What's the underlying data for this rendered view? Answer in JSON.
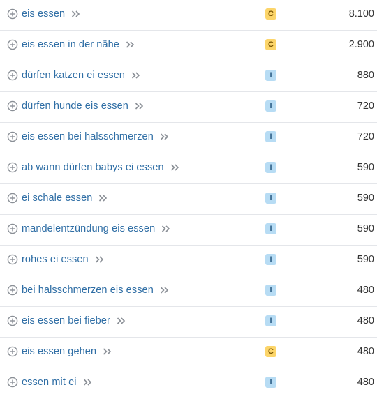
{
  "rows": [
    {
      "keyword": "eis essen",
      "intent": "C",
      "volume": "8.100"
    },
    {
      "keyword": "eis essen in der nähe",
      "intent": "C",
      "volume": "2.900"
    },
    {
      "keyword": "dürfen katzen ei essen",
      "intent": "I",
      "volume": "880"
    },
    {
      "keyword": "dürfen hunde eis essen",
      "intent": "I",
      "volume": "720"
    },
    {
      "keyword": "eis essen bei halsschmerzen",
      "intent": "I",
      "volume": "720"
    },
    {
      "keyword": "ab wann dürfen babys ei essen",
      "intent": "I",
      "volume": "590"
    },
    {
      "keyword": "ei schale essen",
      "intent": "I",
      "volume": "590"
    },
    {
      "keyword": "mandelentzündung eis essen",
      "intent": "I",
      "volume": "590"
    },
    {
      "keyword": "rohes ei essen",
      "intent": "I",
      "volume": "590"
    },
    {
      "keyword": "bei halsschmerzen eis essen",
      "intent": "I",
      "volume": "480"
    },
    {
      "keyword": "eis essen bei fieber",
      "intent": "I",
      "volume": "480"
    },
    {
      "keyword": "eis essen gehen",
      "intent": "C",
      "volume": "480"
    },
    {
      "keyword": "essen mit ei",
      "intent": "I",
      "volume": "480"
    }
  ],
  "icons": {
    "add": "plus-circle-icon",
    "open": "double-chevron-right-icon"
  },
  "colors": {
    "link": "#2f6ea5",
    "commercial_badge": "#fcd56a",
    "informational_badge": "#b7dcf4",
    "divider": "#e4e6ea"
  }
}
